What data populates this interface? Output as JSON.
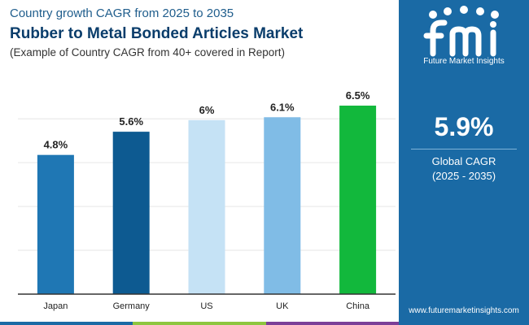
{
  "header": {
    "subtitle_top": "Country growth CAGR from 2025 to 2035",
    "title": "Rubber to Metal Bonded Articles Market",
    "subtitle_bottom": "(Example of Country CAGR from 40+ covered in Report)"
  },
  "chart_data": {
    "type": "bar",
    "categories": [
      "Japan",
      "Germany",
      "US",
      "UK",
      "China"
    ],
    "values": [
      4.8,
      5.6,
      6,
      6.1,
      6.5
    ],
    "data_labels": [
      "4.8%",
      "5.6%",
      "6%",
      "6.1%",
      "6.5%"
    ],
    "value_unit": "%",
    "ylim": [
      0,
      6.5
    ],
    "grid": true,
    "colors": [
      "#1f77b4",
      "#0d5a91",
      "#c5e2f5",
      "#80bce6",
      "#12b83c"
    ]
  },
  "sidebar": {
    "logo_letters": "fmi",
    "logo_text": "Future Market Insights",
    "kpi_value": "5.9%",
    "kpi_label": "Global CAGR",
    "kpi_period": "(2025 - 2035)",
    "website": "www.futuremarketinsights.com",
    "background_color": "#1a6aa5"
  },
  "bottom_bar_colors": [
    "#1a6aa5",
    "#8dc63f",
    "#7b3f98"
  ]
}
